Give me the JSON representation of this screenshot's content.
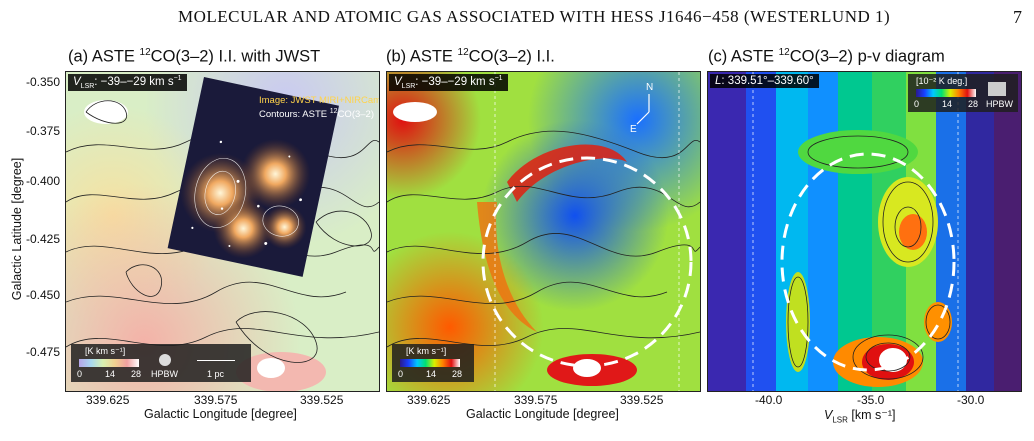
{
  "header": {
    "running_title": "MOLECULAR AND ATOMIC GAS ASSOCIATED WITH HESS J1646−458 (WESTERLUND 1)",
    "page_number": "7"
  },
  "panels": {
    "a": {
      "title_prefix": "(a) ASTE ",
      "title_sup": "12",
      "title_suffix": "CO(3–2) I.I. with JWST",
      "velocity_label": "V",
      "velocity_sub": "LSR",
      "velocity_range": ": −39–−29 km s",
      "velocity_exp": "−1",
      "overlay_line1": "Image: JWST MIRI+NIRCam",
      "overlay_line2": "Contours: ASTE ",
      "overlay_sup": "12",
      "overlay_line2_end": "CO(3–2)",
      "legend_unit": "[K km s⁻¹]",
      "legend_ticks": [
        "0",
        "14",
        "28"
      ],
      "hpbw": "HPBW",
      "scalebar": "1 pc"
    },
    "b": {
      "title_prefix": "(b) ASTE ",
      "title_sup": "12",
      "title_suffix": "CO(3–2) I.I.",
      "velocity_label": "V",
      "velocity_sub": "LSR",
      "velocity_range": ": −39–−29 km s",
      "velocity_exp": "−1",
      "compass_n": "N",
      "compass_e": "E",
      "legend_unit": "[K km s⁻¹]",
      "legend_ticks": [
        "0",
        "14",
        "28"
      ]
    },
    "c": {
      "title_prefix": "(c) ASTE ",
      "title_sup": "12",
      "title_suffix": "CO(3–2) p-v diagram",
      "l_label": "L",
      "l_range": ": 339.51°–339.60°",
      "legend_unit": "[10⁻² K deg.]",
      "legend_ticks": [
        "0",
        "14",
        "28"
      ],
      "hpbw": "HPBW"
    }
  },
  "axes": {
    "ylabel": "Galactic Latitude [degree]",
    "yticks": [
      "-0.350",
      "-0.375",
      "-0.400",
      "-0.425",
      "-0.450",
      "-0.475"
    ],
    "xlabel_lon": "Galactic Longitude [degree]",
    "xticks_lon": [
      "339.625",
      "339.575",
      "339.525"
    ],
    "xlabel_v": "V",
    "xlabel_v_sub": "LSR",
    "xlabel_v_unit": " [km s⁻¹]",
    "xticks_v": [
      "-40.0",
      "-35.0",
      "-30.0"
    ]
  },
  "colors": {
    "colormap": [
      "#2a1a8c",
      "#1840ff",
      "#00c8ff",
      "#00e070",
      "#d8f000",
      "#ff8000",
      "#e01010",
      "#ffffff"
    ]
  }
}
